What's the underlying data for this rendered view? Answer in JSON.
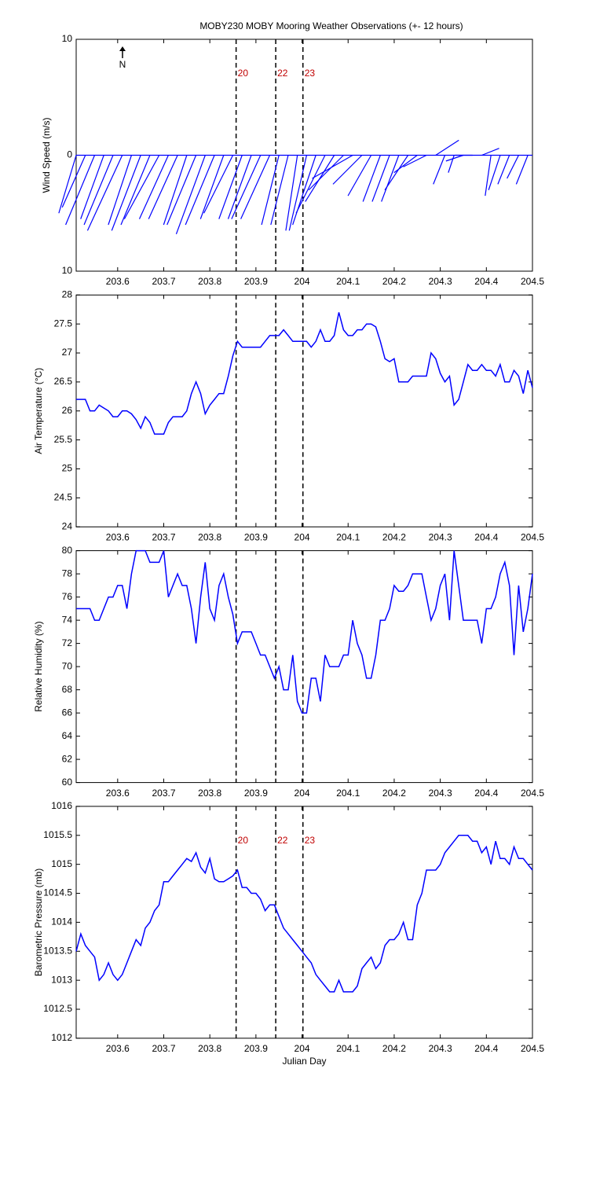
{
  "chart_data": [
    {
      "type": "stick",
      "title": "MOBY230 MOBY Mooring Weather Observations (+- 12 hours)",
      "ylabel": "Wind Speed (m/s)",
      "north_label": "N",
      "color": "#0000ff",
      "xlim": [
        203.51,
        204.5
      ],
      "xticks": [
        203.6,
        203.7,
        203.8,
        203.9,
        204,
        204.1,
        204.2,
        204.3,
        204.4,
        204.5
      ],
      "ylim": [
        -10,
        10
      ],
      "yticks": [
        {
          "value": -10,
          "label": "10"
        },
        0,
        10
      ],
      "vlines": [
        203.857,
        203.943,
        204.002
      ],
      "vline_labels": [
        "20",
        "22",
        "23"
      ],
      "x": [
        203.51,
        203.53,
        203.55,
        203.57,
        203.59,
        203.61,
        203.63,
        203.65,
        203.67,
        203.69,
        203.71,
        203.73,
        203.75,
        203.77,
        203.79,
        203.81,
        203.83,
        203.85,
        203.87,
        203.89,
        203.91,
        203.93,
        203.95,
        203.97,
        203.99,
        204.01,
        204.03,
        204.05,
        204.07,
        204.09,
        204.11,
        204.13,
        204.15,
        204.17,
        204.19,
        204.21,
        204.23,
        204.25,
        204.27,
        204.29,
        204.31,
        204.33,
        204.35,
        204.37,
        204.39,
        204.41,
        204.43,
        204.45,
        204.47,
        204.49
      ],
      "u": [
        -1.5,
        -2,
        -2.5,
        -2,
        -2.5,
        -3,
        -2,
        -2.5,
        -2.5,
        -3,
        -2.5,
        -2.5,
        -2,
        -2.5,
        -2.5,
        -2.5,
        -2,
        -2.5,
        -2,
        -2,
        -2.5,
        -2.5,
        -1.5,
        -1.5,
        -1,
        -1.5,
        -2,
        -2.5,
        -2.5,
        -3,
        -3.5,
        -2.5,
        -2,
        -1.5,
        -1.5,
        -1.5,
        -2,
        -2,
        -2,
        2,
        -1,
        -0.5,
        -1.5,
        -1.5,
        1.5,
        -0.5,
        -1,
        -1,
        -1,
        -1
      ],
      "v": [
        -5,
        -4.5,
        -6,
        -5.5,
        -6,
        -6.5,
        -6,
        -6.5,
        -6,
        -5.5,
        -5.5,
        -5.5,
        -6,
        -6,
        -6.8,
        -6,
        -5.5,
        -5,
        -5.5,
        -5.5,
        -5.5,
        -5.5,
        -6,
        -6,
        -6.5,
        -6.5,
        -6,
        -5,
        -4,
        -3,
        -2,
        -2.5,
        -3.5,
        -4,
        -4,
        -4,
        -3,
        -1.5,
        -1,
        1.3,
        -2.5,
        -1.5,
        -0.5,
        0,
        0.6,
        -3.5,
        -3,
        -2.5,
        -2,
        -2.5
      ]
    },
    {
      "type": "line",
      "ylabel": "Air Temperature (°C)",
      "color": "#0000ff",
      "xlim": [
        203.51,
        204.5
      ],
      "xticks": [
        203.6,
        203.7,
        203.8,
        203.9,
        204,
        204.1,
        204.2,
        204.3,
        204.4,
        204.5
      ],
      "ylim": [
        24,
        28
      ],
      "yticks": [
        24,
        24.5,
        25,
        25.5,
        26,
        26.5,
        27,
        27.5,
        28
      ],
      "vlines": [
        203.857,
        203.943,
        204.002
      ],
      "x": [
        203.51,
        203.52,
        203.53,
        203.54,
        203.55,
        203.56,
        203.57,
        203.58,
        203.59,
        203.6,
        203.61,
        203.62,
        203.63,
        203.64,
        203.65,
        203.66,
        203.67,
        203.68,
        203.69,
        203.7,
        203.71,
        203.72,
        203.73,
        203.74,
        203.75,
        203.76,
        203.77,
        203.78,
        203.79,
        203.8,
        203.81,
        203.82,
        203.83,
        203.84,
        203.85,
        203.86,
        203.87,
        203.88,
        203.89,
        203.9,
        203.91,
        203.92,
        203.93,
        203.94,
        203.95,
        203.96,
        203.97,
        203.98,
        203.99,
        204,
        204.01,
        204.02,
        204.03,
        204.04,
        204.05,
        204.06,
        204.07,
        204.08,
        204.09,
        204.1,
        204.11,
        204.12,
        204.13,
        204.14,
        204.15,
        204.16,
        204.17,
        204.18,
        204.19,
        204.2,
        204.21,
        204.22,
        204.23,
        204.24,
        204.25,
        204.26,
        204.27,
        204.28,
        204.29,
        204.3,
        204.31,
        204.32,
        204.33,
        204.34,
        204.35,
        204.36,
        204.37,
        204.38,
        204.39,
        204.4,
        204.41,
        204.42,
        204.43,
        204.44,
        204.45,
        204.46,
        204.47,
        204.48,
        204.49,
        204.5
      ],
      "values": [
        26.2,
        26.2,
        26.2,
        26.0,
        26.0,
        26.1,
        26.05,
        26.0,
        25.9,
        25.9,
        26.0,
        26.0,
        25.95,
        25.85,
        25.7,
        25.9,
        25.8,
        25.6,
        25.6,
        25.6,
        25.8,
        25.9,
        25.9,
        25.9,
        26.0,
        26.3,
        26.5,
        26.3,
        25.95,
        26.1,
        26.2,
        26.3,
        26.3,
        26.6,
        26.95,
        27.2,
        27.1,
        27.1,
        27.1,
        27.1,
        27.1,
        27.2,
        27.3,
        27.3,
        27.3,
        27.4,
        27.3,
        27.2,
        27.2,
        27.2,
        27.2,
        27.1,
        27.2,
        27.4,
        27.2,
        27.2,
        27.3,
        27.7,
        27.4,
        27.3,
        27.3,
        27.4,
        27.4,
        27.5,
        27.5,
        27.45,
        27.2,
        26.9,
        26.85,
        26.9,
        26.5,
        26.5,
        26.5,
        26.6,
        26.6,
        26.6,
        26.6,
        27.0,
        26.9,
        26.65,
        26.5,
        26.6,
        26.1,
        26.2,
        26.5,
        26.8,
        26.7,
        26.7,
        26.8,
        26.7,
        26.7,
        26.6,
        26.8,
        26.5,
        26.5,
        26.7,
        26.6,
        26.3,
        26.7,
        26.4
      ]
    },
    {
      "type": "line",
      "ylabel": "Relative Humidity (%)",
      "color": "#0000ff",
      "xlim": [
        203.51,
        204.5
      ],
      "xticks": [
        203.6,
        203.7,
        203.8,
        203.9,
        204,
        204.1,
        204.2,
        204.3,
        204.4,
        204.5
      ],
      "ylim": [
        60,
        80
      ],
      "yticks": [
        60,
        62,
        64,
        66,
        68,
        70,
        72,
        74,
        76,
        78,
        80
      ],
      "vlines": [
        203.857,
        203.943,
        204.002
      ],
      "x": [
        203.51,
        203.52,
        203.53,
        203.54,
        203.55,
        203.56,
        203.57,
        203.58,
        203.59,
        203.6,
        203.61,
        203.62,
        203.63,
        203.64,
        203.65,
        203.66,
        203.67,
        203.68,
        203.69,
        203.7,
        203.71,
        203.72,
        203.73,
        203.74,
        203.75,
        203.76,
        203.77,
        203.78,
        203.79,
        203.8,
        203.81,
        203.82,
        203.83,
        203.84,
        203.85,
        203.86,
        203.87,
        203.88,
        203.89,
        203.9,
        203.91,
        203.92,
        203.93,
        203.94,
        203.95,
        203.96,
        203.97,
        203.98,
        203.99,
        204,
        204.01,
        204.02,
        204.03,
        204.04,
        204.05,
        204.06,
        204.07,
        204.08,
        204.09,
        204.1,
        204.11,
        204.12,
        204.13,
        204.14,
        204.15,
        204.16,
        204.17,
        204.18,
        204.19,
        204.2,
        204.21,
        204.22,
        204.23,
        204.24,
        204.25,
        204.26,
        204.27,
        204.28,
        204.29,
        204.3,
        204.31,
        204.32,
        204.33,
        204.34,
        204.35,
        204.36,
        204.37,
        204.38,
        204.39,
        204.4,
        204.41,
        204.42,
        204.43,
        204.44,
        204.45,
        204.46,
        204.47,
        204.48,
        204.49,
        204.5
      ],
      "values": [
        75,
        75,
        75,
        75,
        74,
        74,
        75,
        76,
        76,
        77,
        77,
        75,
        78,
        80,
        80,
        80,
        79,
        79,
        79,
        80,
        76,
        77,
        78,
        77,
        77,
        75,
        72,
        76,
        79,
        75,
        74,
        77,
        78,
        76,
        74.5,
        72,
        73,
        73,
        73,
        72,
        71,
        71,
        70,
        69,
        70,
        68,
        68,
        71,
        67,
        66,
        66,
        69,
        69,
        67,
        71,
        70,
        70,
        70,
        71,
        71,
        74,
        72,
        71,
        69,
        69,
        71,
        74,
        74,
        75,
        77,
        76.5,
        76.5,
        77,
        78,
        78,
        78,
        76,
        74,
        75,
        77,
        78,
        74,
        80,
        77,
        74,
        74,
        74,
        74,
        72,
        75,
        75,
        76,
        78,
        79,
        77,
        71,
        77,
        73,
        75,
        78
      ]
    },
    {
      "type": "line",
      "ylabel": "Barometric Pressure (mb)",
      "xlabel": "Julian Day",
      "color": "#0000ff",
      "xlim": [
        203.51,
        204.5
      ],
      "xticks": [
        203.6,
        203.7,
        203.8,
        203.9,
        204,
        204.1,
        204.2,
        204.3,
        204.4,
        204.5
      ],
      "ylim": [
        1012,
        1016
      ],
      "yticks": [
        1012,
        1012.5,
        1013,
        1013.5,
        1014,
        1014.5,
        1015,
        1015.5,
        1016
      ],
      "vlines": [
        203.857,
        203.943,
        204.002
      ],
      "vline_labels": [
        "20",
        "22",
        "23"
      ],
      "x": [
        203.51,
        203.52,
        203.53,
        203.54,
        203.55,
        203.56,
        203.57,
        203.58,
        203.59,
        203.6,
        203.61,
        203.62,
        203.63,
        203.64,
        203.65,
        203.66,
        203.67,
        203.68,
        203.69,
        203.7,
        203.71,
        203.72,
        203.73,
        203.74,
        203.75,
        203.76,
        203.77,
        203.78,
        203.79,
        203.8,
        203.81,
        203.82,
        203.83,
        203.84,
        203.85,
        203.86,
        203.87,
        203.88,
        203.89,
        203.9,
        203.91,
        203.92,
        203.93,
        203.94,
        203.95,
        203.96,
        203.97,
        203.98,
        203.99,
        204,
        204.01,
        204.02,
        204.03,
        204.04,
        204.05,
        204.06,
        204.07,
        204.08,
        204.09,
        204.1,
        204.11,
        204.12,
        204.13,
        204.14,
        204.15,
        204.16,
        204.17,
        204.18,
        204.19,
        204.2,
        204.21,
        204.22,
        204.23,
        204.24,
        204.25,
        204.26,
        204.27,
        204.28,
        204.29,
        204.3,
        204.31,
        204.32,
        204.33,
        204.34,
        204.35,
        204.36,
        204.37,
        204.38,
        204.39,
        204.4,
        204.41,
        204.42,
        204.43,
        204.44,
        204.45,
        204.46,
        204.47,
        204.48,
        204.49,
        204.5
      ],
      "values": [
        1013.5,
        1013.8,
        1013.6,
        1013.5,
        1013.4,
        1013.0,
        1013.1,
        1013.3,
        1013.1,
        1013.0,
        1013.1,
        1013.3,
        1013.5,
        1013.7,
        1013.6,
        1013.9,
        1014.0,
        1014.2,
        1014.3,
        1014.7,
        1014.7,
        1014.8,
        1014.9,
        1015.0,
        1015.1,
        1015.05,
        1015.2,
        1014.95,
        1014.85,
        1015.1,
        1014.75,
        1014.7,
        1014.7,
        1014.75,
        1014.8,
        1014.9,
        1014.6,
        1014.6,
        1014.5,
        1014.5,
        1014.4,
        1014.2,
        1014.3,
        1014.3,
        1014.1,
        1013.9,
        1013.8,
        1013.7,
        1013.6,
        1013.5,
        1013.4,
        1013.3,
        1013.1,
        1013.0,
        1012.9,
        1012.8,
        1012.8,
        1013.0,
        1012.8,
        1012.8,
        1012.8,
        1012.9,
        1013.2,
        1013.3,
        1013.4,
        1013.2,
        1013.3,
        1013.6,
        1013.7,
        1013.7,
        1013.8,
        1014.0,
        1013.7,
        1013.7,
        1014.3,
        1014.5,
        1014.9,
        1014.9,
        1014.9,
        1015.0,
        1015.2,
        1015.3,
        1015.4,
        1015.5,
        1015.5,
        1015.5,
        1015.4,
        1015.4,
        1015.2,
        1015.3,
        1015.0,
        1015.4,
        1015.1,
        1015.1,
        1015.0,
        1015.3,
        1015.1,
        1015.1,
        1015.0,
        1014.9
      ]
    }
  ]
}
